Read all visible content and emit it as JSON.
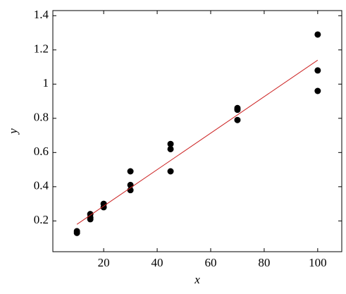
{
  "chart_data": {
    "type": "scatter",
    "x_label": "x",
    "y_label": "y",
    "xlim": [
      1,
      109
    ],
    "ylim": [
      0.02,
      1.43
    ],
    "xticks": [
      20,
      40,
      60,
      80,
      100
    ],
    "yticks": [
      0.2,
      0.4,
      0.6,
      0.8,
      1,
      1.2,
      1.4
    ],
    "grid": false,
    "series": [
      {
        "type": "scatter",
        "color": "#000000",
        "x": [
          10,
          10,
          15,
          15,
          15,
          20,
          20,
          30,
          30,
          30,
          45,
          45,
          45,
          70,
          70,
          70,
          100,
          100,
          100
        ],
        "values": [
          0.13,
          0.14,
          0.21,
          0.22,
          0.24,
          0.28,
          0.3,
          0.38,
          0.41,
          0.49,
          0.49,
          0.62,
          0.65,
          0.79,
          0.85,
          0.86,
          0.96,
          1.08,
          1.29
        ]
      },
      {
        "type": "line",
        "color": "#cc2222",
        "x": [
          10,
          100
        ],
        "values": [
          0.18,
          1.14
        ]
      }
    ]
  }
}
